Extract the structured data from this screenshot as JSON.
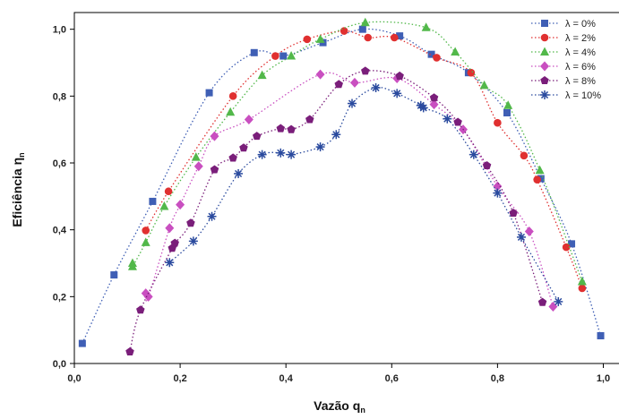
{
  "chart_data": {
    "type": "scatter",
    "xlabel": "Vazão q",
    "xlabel_sub": "n",
    "ylabel": "Eficiência η",
    "ylabel_sub": "n",
    "xlim": [
      0,
      1.05
    ],
    "ylim": [
      0,
      1.05
    ],
    "x_ticks": [
      0.0,
      0.2,
      0.4,
      0.6,
      0.8,
      1.0
    ],
    "y_ticks": [
      0.0,
      0.2,
      0.4,
      0.6,
      0.8,
      1.0
    ],
    "x_tick_labels": [
      "0,0",
      "0,2",
      "0,4",
      "0,6",
      "0,8",
      "1,0"
    ],
    "y_tick_labels": [
      "0,0",
      "0,2",
      "0,4",
      "0,6",
      "0,8",
      "1,0"
    ],
    "grid": false,
    "legend_position": "top-right",
    "connector": "dotted",
    "series": [
      {
        "name": "λ = 0%",
        "marker": "square",
        "color": "#3f5fb5",
        "points": [
          [
            0.015,
            0.06
          ],
          [
            0.075,
            0.265
          ],
          [
            0.148,
            0.485
          ],
          [
            0.255,
            0.81
          ],
          [
            0.34,
            0.93
          ],
          [
            0.395,
            0.92
          ],
          [
            0.47,
            0.96
          ],
          [
            0.545,
            1.0
          ],
          [
            0.615,
            0.98
          ],
          [
            0.675,
            0.925
          ],
          [
            0.745,
            0.87
          ],
          [
            0.818,
            0.75
          ],
          [
            0.882,
            0.553
          ],
          [
            0.94,
            0.358
          ],
          [
            0.995,
            0.083
          ]
        ]
      },
      {
        "name": "λ = 2%",
        "marker": "circle",
        "color": "#e03030",
        "points": [
          [
            0.135,
            0.398
          ],
          [
            0.178,
            0.515
          ],
          [
            0.3,
            0.8
          ],
          [
            0.38,
            0.92
          ],
          [
            0.44,
            0.97
          ],
          [
            0.51,
            0.995
          ],
          [
            0.555,
            0.975
          ],
          [
            0.605,
            0.975
          ],
          [
            0.685,
            0.915
          ],
          [
            0.75,
            0.87
          ],
          [
            0.8,
            0.72
          ],
          [
            0.85,
            0.622
          ],
          [
            0.875,
            0.55
          ],
          [
            0.93,
            0.348
          ],
          [
            0.96,
            0.225
          ]
        ]
      },
      {
        "name": "λ = 4%",
        "marker": "triangle",
        "color": "#52b84a",
        "points": [
          [
            0.11,
            0.3
          ],
          [
            0.11,
            0.29
          ],
          [
            0.135,
            0.362
          ],
          [
            0.17,
            0.47
          ],
          [
            0.23,
            0.617
          ],
          [
            0.295,
            0.752
          ],
          [
            0.355,
            0.862
          ],
          [
            0.41,
            0.92
          ],
          [
            0.465,
            0.97
          ],
          [
            0.55,
            1.02
          ],
          [
            0.665,
            1.005
          ],
          [
            0.72,
            0.932
          ],
          [
            0.775,
            0.832
          ],
          [
            0.82,
            0.772
          ],
          [
            0.88,
            0.578
          ],
          [
            0.96,
            0.245
          ]
        ]
      },
      {
        "name": "λ = 6%",
        "marker": "diamond",
        "color": "#c94fc0",
        "points": [
          [
            0.135,
            0.21
          ],
          [
            0.14,
            0.2
          ],
          [
            0.18,
            0.405
          ],
          [
            0.2,
            0.475
          ],
          [
            0.235,
            0.59
          ],
          [
            0.265,
            0.68
          ],
          [
            0.33,
            0.73
          ],
          [
            0.465,
            0.865
          ],
          [
            0.53,
            0.84
          ],
          [
            0.61,
            0.853
          ],
          [
            0.68,
            0.775
          ],
          [
            0.735,
            0.7
          ],
          [
            0.8,
            0.53
          ],
          [
            0.86,
            0.395
          ],
          [
            0.905,
            0.17
          ]
        ]
      },
      {
        "name": "λ = 8%",
        "marker": "pentagon",
        "color": "#7a1e7a",
        "points": [
          [
            0.105,
            0.035
          ],
          [
            0.125,
            0.16
          ],
          [
            0.185,
            0.345
          ],
          [
            0.19,
            0.36
          ],
          [
            0.22,
            0.42
          ],
          [
            0.265,
            0.58
          ],
          [
            0.3,
            0.615
          ],
          [
            0.32,
            0.645
          ],
          [
            0.345,
            0.68
          ],
          [
            0.39,
            0.703
          ],
          [
            0.41,
            0.7
          ],
          [
            0.445,
            0.73
          ],
          [
            0.5,
            0.835
          ],
          [
            0.55,
            0.875
          ],
          [
            0.615,
            0.86
          ],
          [
            0.68,
            0.795
          ],
          [
            0.725,
            0.722
          ],
          [
            0.78,
            0.592
          ],
          [
            0.83,
            0.45
          ],
          [
            0.885,
            0.183
          ]
        ]
      },
      {
        "name": "λ = 10%",
        "marker": "asterisk",
        "color": "#2a4a9e",
        "points": [
          [
            0.18,
            0.302
          ],
          [
            0.225,
            0.366
          ],
          [
            0.26,
            0.44
          ],
          [
            0.31,
            0.568
          ],
          [
            0.355,
            0.625
          ],
          [
            0.39,
            0.63
          ],
          [
            0.41,
            0.625
          ],
          [
            0.465,
            0.648
          ],
          [
            0.495,
            0.685
          ],
          [
            0.525,
            0.778
          ],
          [
            0.57,
            0.825
          ],
          [
            0.61,
            0.808
          ],
          [
            0.655,
            0.772
          ],
          [
            0.66,
            0.765
          ],
          [
            0.705,
            0.732
          ],
          [
            0.755,
            0.625
          ],
          [
            0.8,
            0.51
          ],
          [
            0.845,
            0.378
          ],
          [
            0.915,
            0.185
          ]
        ]
      }
    ]
  }
}
